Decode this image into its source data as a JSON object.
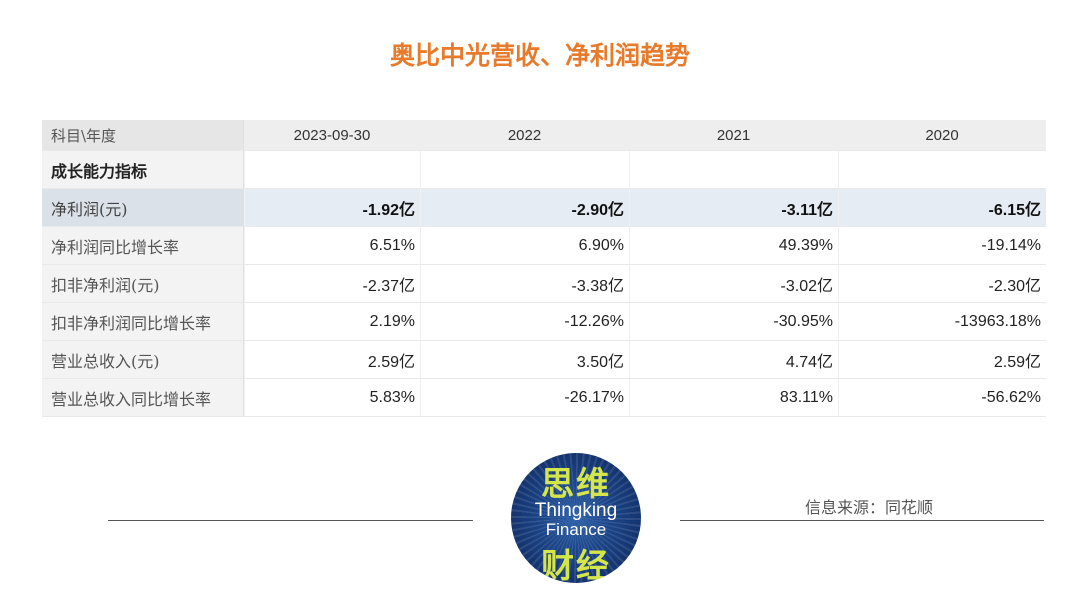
{
  "title": "奥比中光营收、净利润趋势",
  "table": {
    "header": [
      "科目\\年度",
      "2023-09-30",
      "2022",
      "2021",
      "2020"
    ],
    "section_label": "成长能力指标",
    "rows": [
      {
        "label": "净利润(元)",
        "values": [
          "-1.92亿",
          "-2.90亿",
          "-3.11亿",
          "-6.15亿"
        ]
      },
      {
        "label": "净利润同比增长率",
        "values": [
          "6.51%",
          "6.90%",
          "49.39%",
          "-19.14%"
        ]
      },
      {
        "label": "扣非净利润(元)",
        "values": [
          "-2.37亿",
          "-3.38亿",
          "-3.02亿",
          "-2.30亿"
        ]
      },
      {
        "label": "扣非净利润同比增长率",
        "values": [
          "2.19%",
          "-12.26%",
          "-30.95%",
          "-13963.18%"
        ]
      },
      {
        "label": "营业总收入(元)",
        "values": [
          "2.59亿",
          "3.50亿",
          "4.74亿",
          "2.59亿"
        ]
      },
      {
        "label": "营业总收入同比增长率",
        "values": [
          "5.83%",
          "-26.17%",
          "83.11%",
          "-56.62%"
        ]
      }
    ]
  },
  "logo": {
    "cn_top": "思维",
    "en_line1": "Thingking",
    "en_line2": "Finance",
    "cn_bottom": "财经"
  },
  "source": "信息来源：同花顺",
  "colors": {
    "title": "#e87a2c",
    "highlight_row": "#e5ecf4",
    "logo_green": "#d4e64a",
    "logo_blue": "#1c4487"
  }
}
